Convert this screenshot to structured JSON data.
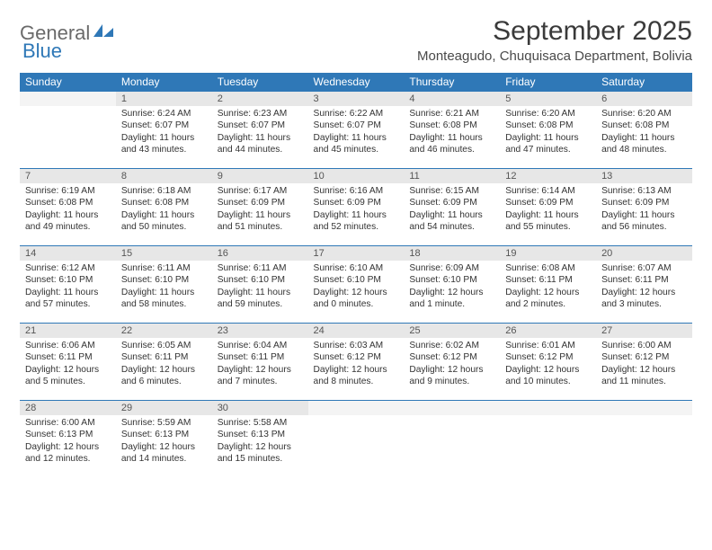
{
  "brand": {
    "part1": "General",
    "part2": "Blue"
  },
  "title": "September 2025",
  "location": "Monteagudo, Chuquisaca Department, Bolivia",
  "colors": {
    "header_bg": "#2f78b7",
    "header_text": "#ffffff",
    "daynum_bg": "#e7e7e7",
    "text": "#333333",
    "title_color": "#3a3a3a"
  },
  "day_headers": [
    "Sunday",
    "Monday",
    "Tuesday",
    "Wednesday",
    "Thursday",
    "Friday",
    "Saturday"
  ],
  "weeks": [
    [
      null,
      {
        "n": "1",
        "sr": "6:24 AM",
        "ss": "6:07 PM",
        "dl": "11 hours and 43 minutes."
      },
      {
        "n": "2",
        "sr": "6:23 AM",
        "ss": "6:07 PM",
        "dl": "11 hours and 44 minutes."
      },
      {
        "n": "3",
        "sr": "6:22 AM",
        "ss": "6:07 PM",
        "dl": "11 hours and 45 minutes."
      },
      {
        "n": "4",
        "sr": "6:21 AM",
        "ss": "6:08 PM",
        "dl": "11 hours and 46 minutes."
      },
      {
        "n": "5",
        "sr": "6:20 AM",
        "ss": "6:08 PM",
        "dl": "11 hours and 47 minutes."
      },
      {
        "n": "6",
        "sr": "6:20 AM",
        "ss": "6:08 PM",
        "dl": "11 hours and 48 minutes."
      }
    ],
    [
      {
        "n": "7",
        "sr": "6:19 AM",
        "ss": "6:08 PM",
        "dl": "11 hours and 49 minutes."
      },
      {
        "n": "8",
        "sr": "6:18 AM",
        "ss": "6:08 PM",
        "dl": "11 hours and 50 minutes."
      },
      {
        "n": "9",
        "sr": "6:17 AM",
        "ss": "6:09 PM",
        "dl": "11 hours and 51 minutes."
      },
      {
        "n": "10",
        "sr": "6:16 AM",
        "ss": "6:09 PM",
        "dl": "11 hours and 52 minutes."
      },
      {
        "n": "11",
        "sr": "6:15 AM",
        "ss": "6:09 PM",
        "dl": "11 hours and 54 minutes."
      },
      {
        "n": "12",
        "sr": "6:14 AM",
        "ss": "6:09 PM",
        "dl": "11 hours and 55 minutes."
      },
      {
        "n": "13",
        "sr": "6:13 AM",
        "ss": "6:09 PM",
        "dl": "11 hours and 56 minutes."
      }
    ],
    [
      {
        "n": "14",
        "sr": "6:12 AM",
        "ss": "6:10 PM",
        "dl": "11 hours and 57 minutes."
      },
      {
        "n": "15",
        "sr": "6:11 AM",
        "ss": "6:10 PM",
        "dl": "11 hours and 58 minutes."
      },
      {
        "n": "16",
        "sr": "6:11 AM",
        "ss": "6:10 PM",
        "dl": "11 hours and 59 minutes."
      },
      {
        "n": "17",
        "sr": "6:10 AM",
        "ss": "6:10 PM",
        "dl": "12 hours and 0 minutes."
      },
      {
        "n": "18",
        "sr": "6:09 AM",
        "ss": "6:10 PM",
        "dl": "12 hours and 1 minute."
      },
      {
        "n": "19",
        "sr": "6:08 AM",
        "ss": "6:11 PM",
        "dl": "12 hours and 2 minutes."
      },
      {
        "n": "20",
        "sr": "6:07 AM",
        "ss": "6:11 PM",
        "dl": "12 hours and 3 minutes."
      }
    ],
    [
      {
        "n": "21",
        "sr": "6:06 AM",
        "ss": "6:11 PM",
        "dl": "12 hours and 5 minutes."
      },
      {
        "n": "22",
        "sr": "6:05 AM",
        "ss": "6:11 PM",
        "dl": "12 hours and 6 minutes."
      },
      {
        "n": "23",
        "sr": "6:04 AM",
        "ss": "6:11 PM",
        "dl": "12 hours and 7 minutes."
      },
      {
        "n": "24",
        "sr": "6:03 AM",
        "ss": "6:12 PM",
        "dl": "12 hours and 8 minutes."
      },
      {
        "n": "25",
        "sr": "6:02 AM",
        "ss": "6:12 PM",
        "dl": "12 hours and 9 minutes."
      },
      {
        "n": "26",
        "sr": "6:01 AM",
        "ss": "6:12 PM",
        "dl": "12 hours and 10 minutes."
      },
      {
        "n": "27",
        "sr": "6:00 AM",
        "ss": "6:12 PM",
        "dl": "12 hours and 11 minutes."
      }
    ],
    [
      {
        "n": "28",
        "sr": "6:00 AM",
        "ss": "6:13 PM",
        "dl": "12 hours and 12 minutes."
      },
      {
        "n": "29",
        "sr": "5:59 AM",
        "ss": "6:13 PM",
        "dl": "12 hours and 14 minutes."
      },
      {
        "n": "30",
        "sr": "5:58 AM",
        "ss": "6:13 PM",
        "dl": "12 hours and 15 minutes."
      },
      null,
      null,
      null,
      null
    ]
  ],
  "labels": {
    "sunrise": "Sunrise:",
    "sunset": "Sunset:",
    "daylight": "Daylight:"
  }
}
